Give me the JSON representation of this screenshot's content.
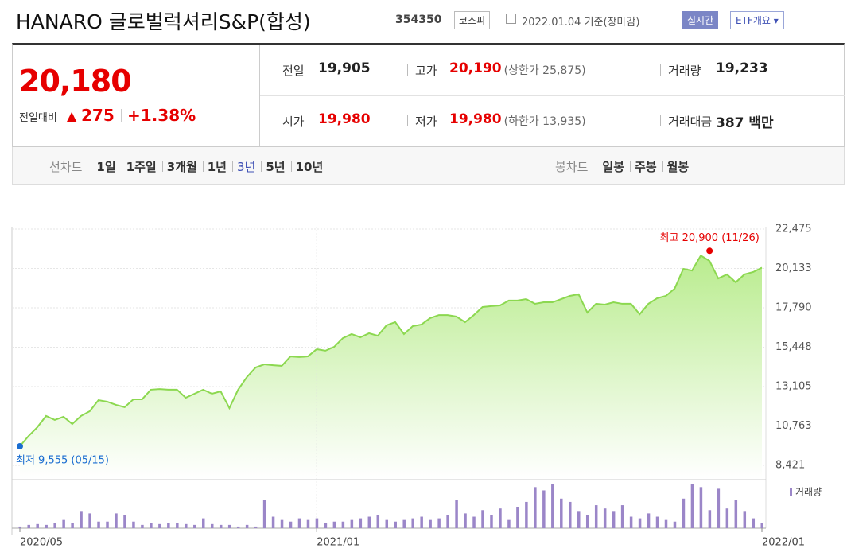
{
  "header": {
    "title": "HANARO 글로벌럭셔리S&P(합성)",
    "code": "354350",
    "market": "코스피",
    "date": "2022.01.04 기준(장마감)",
    "buttons": [
      "실시간",
      "ETF개요"
    ]
  },
  "quote": {
    "price": "20,180",
    "change_label": "전일대비",
    "change": "275",
    "change_pct": "+1.38%"
  },
  "summary": {
    "rows": [
      [
        {
          "label": "전일",
          "value": "19,905"
        },
        {
          "label": "고가",
          "value": "20,190",
          "note": "(상한가 25,875)",
          "color": "#e60000"
        },
        {
          "label": "거래량",
          "value": "19,233"
        }
      ],
      [
        {
          "label": "시가",
          "value": "19,980",
          "color": "#e60000"
        },
        {
          "label": "저가",
          "value": "19,980",
          "note": "(하한가 13,935)",
          "color": "#e60000"
        },
        {
          "label": "거래대금",
          "value": "387 백만"
        }
      ]
    ]
  },
  "tabs": {
    "line_label": "선차트",
    "line": [
      "1일",
      "1주일",
      "3개월",
      "1년",
      "3년",
      "5년",
      "10년"
    ],
    "active": 4,
    "candle_label": "봉차트",
    "candle": [
      "일봉",
      "주봉",
      "월봉"
    ]
  },
  "chart_data": [
    {
      "type": "area",
      "color": "#8cd850",
      "categories": [
        "2020/05",
        null,
        null,
        null,
        null,
        null,
        null,
        null,
        null,
        null,
        null,
        null,
        null,
        null,
        null,
        null,
        null,
        null,
        null,
        null,
        null,
        null,
        null,
        null,
        null,
        null,
        null,
        null,
        null,
        null,
        null,
        null,
        null,
        null,
        "2021/01",
        null,
        null,
        null,
        null,
        null,
        null,
        null,
        null,
        null,
        null,
        null,
        null,
        null,
        null,
        null,
        null,
        null,
        null,
        null,
        null,
        null,
        null,
        null,
        null,
        null,
        null,
        null,
        null,
        null,
        null,
        null,
        null,
        null,
        null,
        null,
        null,
        null,
        null,
        null,
        null,
        null,
        null,
        null,
        null,
        null,
        null,
        null,
        null,
        null,
        null,
        "2022/01"
      ],
      "values": [
        9555,
        10170,
        10690,
        11360,
        11120,
        11310,
        10880,
        11360,
        11640,
        12300,
        12210,
        12020,
        11880,
        12350,
        12350,
        12920,
        12960,
        12920,
        12920,
        12440,
        12680,
        12920,
        12680,
        12820,
        11830,
        12920,
        13670,
        14240,
        14430,
        14380,
        14340,
        14900,
        14860,
        14900,
        15330,
        15240,
        15470,
        15990,
        16230,
        16040,
        16280,
        16130,
        16750,
        16940,
        16230,
        16700,
        16800,
        17180,
        17360,
        17360,
        17270,
        16940,
        17360,
        17840,
        17890,
        17930,
        18220,
        18220,
        18310,
        18030,
        18120,
        18120,
        18310,
        18500,
        18600,
        17510,
        18030,
        17980,
        18120,
        18030,
        18030,
        17410,
        18030,
        18360,
        18500,
        18930,
        20110,
        20010,
        20900,
        20580,
        19540,
        19780,
        19310,
        19780,
        19920,
        20180
      ],
      "ylim": [
        8421,
        22475
      ],
      "yticks": [
        {
          "value": 8421,
          "label": "8,421"
        },
        {
          "value": 10763,
          "label": "10,763"
        },
        {
          "value": 13105,
          "label": "13,105"
        },
        {
          "value": 15448,
          "label": "15,448"
        },
        {
          "value": 17790,
          "label": "17,790"
        },
        {
          "value": 20133,
          "label": "20,133"
        },
        {
          "value": 22475,
          "label": "22,475"
        }
      ],
      "grid": true,
      "annotations": [
        {
          "text": "최고 20,900 (11/26)",
          "color": "#e60000"
        },
        {
          "text": "최저 9,555 (05/15)",
          "color": "#1a6dd1"
        }
      ]
    },
    {
      "type": "bar",
      "series": [
        {
          "name": "거래량",
          "color": "#9b86c8",
          "values": [
            2,
            4,
            5,
            4,
            6,
            10,
            6,
            20,
            18,
            8,
            8,
            18,
            16,
            8,
            4,
            6,
            5,
            6,
            6,
            5,
            4,
            12,
            5,
            4,
            4,
            2,
            4,
            2,
            34,
            14,
            10,
            8,
            12,
            10,
            12,
            6,
            8,
            8,
            10,
            12,
            14,
            16,
            10,
            8,
            10,
            12,
            14,
            10,
            12,
            16,
            34,
            18,
            14,
            22,
            16,
            24,
            10,
            26,
            32,
            50,
            46,
            54,
            36,
            32,
            20,
            16,
            28,
            24,
            20,
            28,
            14,
            12,
            18,
            14,
            10,
            8,
            36,
            54,
            50,
            22,
            48,
            24,
            34,
            20,
            12,
            6
          ]
        }
      ],
      "ylim": [
        0,
        60
      ]
    }
  ]
}
